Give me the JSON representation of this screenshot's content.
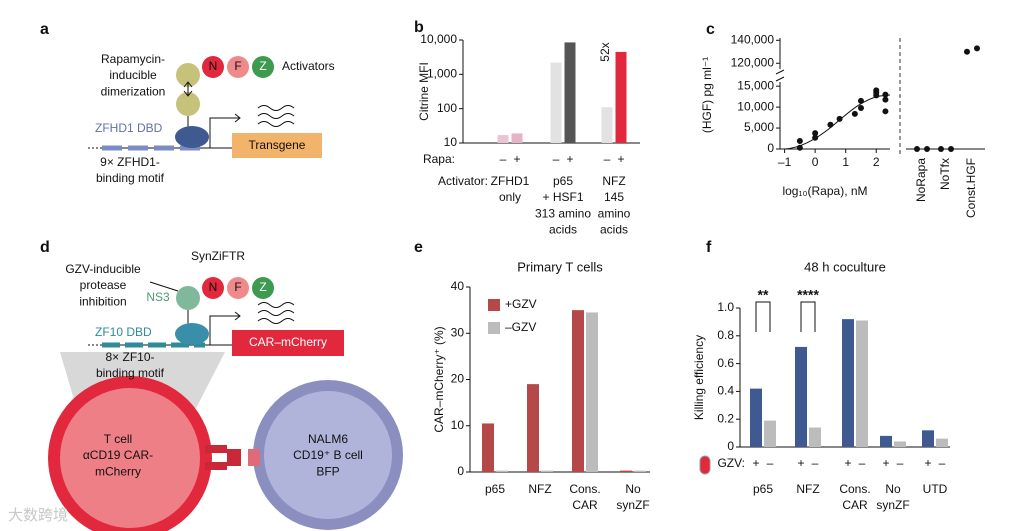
{
  "panel_labels": [
    "a",
    "b",
    "c",
    "d",
    "e",
    "f"
  ],
  "diagrams": {
    "a": {
      "dimerization": "Rapamycin-\ninducible\ndimerization",
      "domains": [
        "N",
        "F",
        "Z"
      ],
      "activators": "Activators",
      "dbd": "ZFHD1 DBD",
      "motif": "9× ZFHD1-\nbinding motif",
      "output": "Transgene"
    },
    "d": {
      "title": "SynZiFTR",
      "inhibition": "GZV-inducible\nprotease\ninhibition",
      "protease": "NS3",
      "domains": [
        "N",
        "F",
        "Z"
      ],
      "dbd": "ZF10 DBD",
      "motif": "8× ZF10-\nbinding motif",
      "output": "CAR–mCherry",
      "tcell": "T cell\nαCD19 CAR-\nmCherry",
      "target": "NALM6\nCD19⁺ B cell\nBFP"
    }
  },
  "watermark": "大数跨境",
  "chart_data": [
    {
      "type": "bar",
      "ylabel": "Citrine MFI",
      "yscale": "log",
      "ylim": [
        10,
        10000
      ],
      "yticks": [
        10,
        100,
        {
          "value": 1000,
          "label": "1,000"
        },
        {
          "value": 10000,
          "label": "10,000"
        }
      ],
      "row_labels": [
        "Rapa:",
        "Activator:"
      ],
      "categories": [
        "ZFHD1\nonly",
        "p65\n+ HSF1\n313 amino\nacids",
        "NFZ\n145\namino\nacids"
      ],
      "series": [
        {
          "name": "–",
          "values": [
            17,
            2200,
            110
          ],
          "colors": [
            "#ebc3d3",
            "#e2e2e2",
            "#e2e2e2"
          ]
        },
        {
          "name": "+",
          "values": [
            19,
            8500,
            4500
          ],
          "colors": [
            "#e6b2c6",
            "#555555",
            "#e2283c"
          ]
        }
      ],
      "annotations": [
        "52x"
      ]
    },
    {
      "type": "scatter",
      "ylabel": "(HGF) pg ml⁻¹",
      "xlabel": "log₁₀(Rapa), nM",
      "xlim": [
        -1.15,
        2.45
      ],
      "xticks": [
        {
          "value": -1,
          "label": "–1"
        },
        0,
        1,
        2
      ],
      "ylim": [
        0,
        16000
      ],
      "yticks": [
        0,
        {
          "value": 5000,
          "label": "5,000"
        },
        {
          "value": 10000,
          "label": "10,000"
        },
        {
          "value": 15000,
          "label": "15,000"
        }
      ],
      "ylim_break": [
        115000,
        142000
      ],
      "yticks_break": [
        {
          "value": 120000,
          "label": "120,000"
        },
        {
          "value": 140000,
          "label": "140,000"
        }
      ],
      "x": [
        -0.5,
        -0.5,
        0,
        0,
        0.5,
        0.8,
        1.3,
        1.5,
        1.5,
        2.0,
        2.0,
        2.0,
        2.3,
        2.3,
        2.3
      ],
      "y": [
        300,
        1900,
        2700,
        3800,
        5800,
        7200,
        8400,
        9800,
        11500,
        13500,
        14000,
        12800,
        13000,
        11800,
        9000
      ],
      "color": "#111111",
      "categories": [
        "NoRapa",
        "NoTfx",
        "Const.HGF"
      ],
      "category_values": [
        [
          0,
          0
        ],
        [
          0,
          0
        ],
        [
          130000,
          133000
        ]
      ]
    },
    {
      "type": "bar",
      "title": "Primary T cells",
      "ylabel": "CAR–mCherry⁺ (%)",
      "ylim": [
        0,
        40
      ],
      "yticks": [
        0,
        10,
        20,
        30,
        40
      ],
      "categories": [
        "p65",
        "NFZ",
        "Cons.\nCAR",
        "No\nsynZF"
      ],
      "series": [
        {
          "name": "+GZV",
          "color": "#b5494a",
          "values": [
            10.5,
            19,
            35,
            0.3
          ]
        },
        {
          "name": "–GZV",
          "color": "#bcbcbc",
          "values": [
            0.3,
            0.3,
            34.5,
            0.3
          ]
        }
      ],
      "legend": "upper-left"
    },
    {
      "type": "bar",
      "title": "48 h coculture",
      "ylabel": "Killing efficiency",
      "ylim": [
        0,
        1
      ],
      "yticks": [
        0,
        0.2,
        0.4,
        0.6,
        0.8,
        {
          "value": 1,
          "label": "1.0"
        }
      ],
      "row_labels": [
        "GZV:"
      ],
      "categories": [
        "p65",
        "NFZ",
        "Cons.\nCAR",
        "No\nsynZF",
        "UTD"
      ],
      "series": [
        {
          "name": "+",
          "color": "#3e5a90",
          "values": [
            0.42,
            0.72,
            0.92,
            0.08,
            0.12
          ]
        },
        {
          "name": "–",
          "color": "#bcbcbc",
          "values": [
            0.19,
            0.14,
            0.91,
            0.04,
            0.06
          ]
        }
      ],
      "annotations": [
        "**",
        "****"
      ]
    }
  ]
}
